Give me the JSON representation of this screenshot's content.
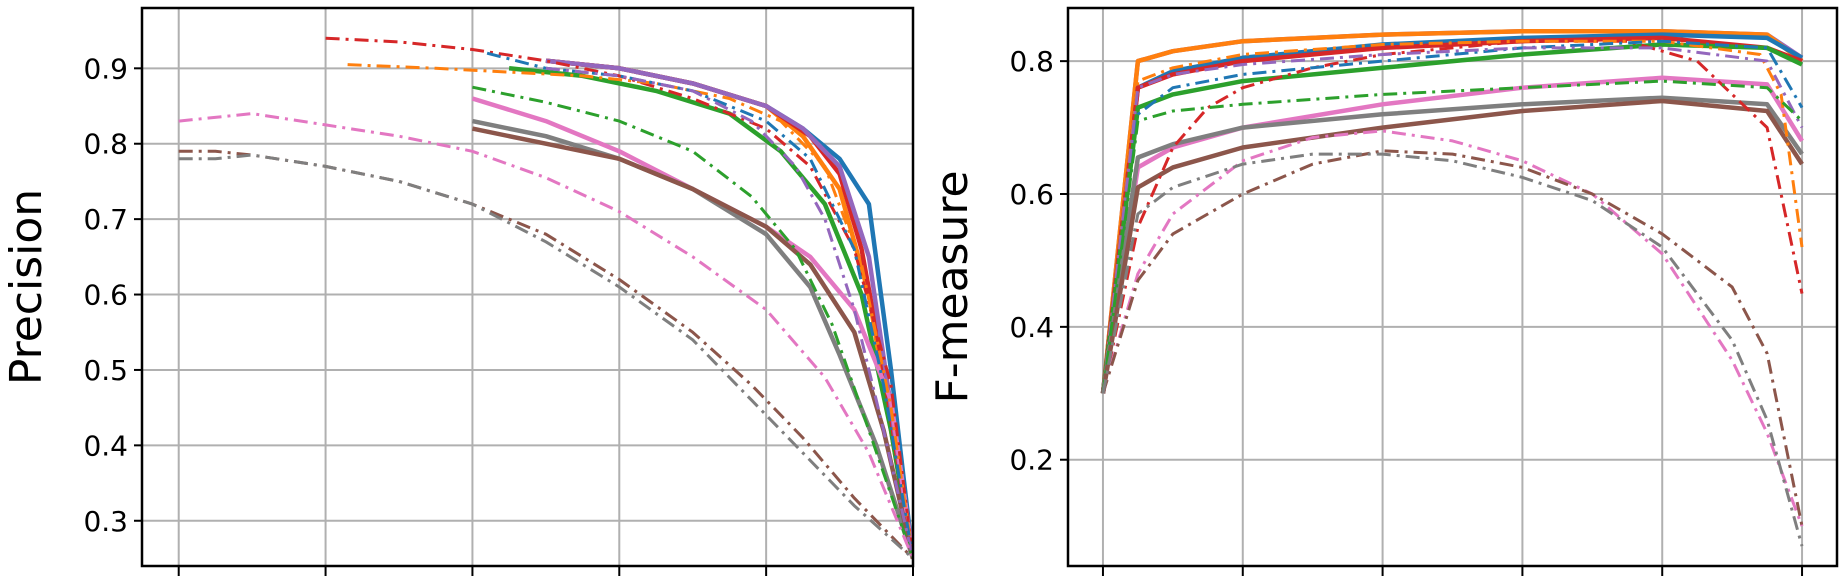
{
  "colors": {
    "blue": "#1f77b4",
    "orange": "#ff7f0e",
    "green": "#2ca02c",
    "red": "#d62728",
    "purple": "#9467bd",
    "brown": "#8c564b",
    "pink": "#e377c2",
    "gray": "#7f7f7f",
    "grid": "#b0b0b0"
  },
  "chart_data": [
    {
      "type": "line",
      "title": "",
      "xlabel": "",
      "ylabel": "Precision",
      "xlim": [
        -0.05,
        1.0
      ],
      "ylim": [
        0.24,
        0.98
      ],
      "xticks": [
        0,
        0.2,
        0.4,
        0.6,
        0.8,
        1.0
      ],
      "yticks": [
        0.3,
        0.4,
        0.5,
        0.6,
        0.7,
        0.8,
        0.9
      ],
      "ytick_labels": [
        "0.3",
        "0.4",
        "0.5",
        "0.6",
        "0.7",
        "0.8",
        "0.9"
      ],
      "grid": true,
      "series": [
        {
          "color": "blue",
          "style": "solid",
          "x": [
            0.5,
            0.6,
            0.7,
            0.8,
            0.85,
            0.9,
            0.94,
            0.97,
            1.0
          ],
          "y": [
            0.91,
            0.9,
            0.88,
            0.85,
            0.82,
            0.78,
            0.72,
            0.5,
            0.25
          ]
        },
        {
          "color": "orange",
          "style": "solid",
          "x": [
            0.5,
            0.6,
            0.7,
            0.8,
            0.85,
            0.9,
            0.94,
            0.97,
            1.0
          ],
          "y": [
            0.91,
            0.9,
            0.88,
            0.85,
            0.81,
            0.74,
            0.6,
            0.42,
            0.25
          ]
        },
        {
          "color": "green",
          "style": "solid",
          "x": [
            0.45,
            0.55,
            0.65,
            0.75,
            0.82,
            0.88,
            0.93,
            0.97,
            1.0
          ],
          "y": [
            0.9,
            0.89,
            0.87,
            0.84,
            0.79,
            0.72,
            0.6,
            0.42,
            0.25
          ]
        },
        {
          "color": "red",
          "style": "solid",
          "x": [
            0.5,
            0.6,
            0.7,
            0.8,
            0.86,
            0.9,
            0.93,
            0.96,
            1.0
          ],
          "y": [
            0.91,
            0.9,
            0.88,
            0.85,
            0.81,
            0.76,
            0.66,
            0.5,
            0.25
          ]
        },
        {
          "color": "purple",
          "style": "solid",
          "x": [
            0.5,
            0.6,
            0.7,
            0.8,
            0.85,
            0.9,
            0.94,
            0.97,
            1.0
          ],
          "y": [
            0.91,
            0.9,
            0.88,
            0.85,
            0.82,
            0.77,
            0.65,
            0.45,
            0.25
          ]
        },
        {
          "color": "pink",
          "style": "solid",
          "x": [
            0.4,
            0.5,
            0.6,
            0.7,
            0.8,
            0.86,
            0.92,
            0.97,
            1.0
          ],
          "y": [
            0.86,
            0.83,
            0.79,
            0.74,
            0.69,
            0.65,
            0.58,
            0.46,
            0.25
          ]
        },
        {
          "color": "gray",
          "style": "solid",
          "x": [
            0.4,
            0.5,
            0.6,
            0.7,
            0.8,
            0.86,
            0.9,
            0.95,
            1.0
          ],
          "y": [
            0.83,
            0.81,
            0.78,
            0.74,
            0.68,
            0.61,
            0.52,
            0.4,
            0.25
          ]
        },
        {
          "color": "brown",
          "style": "solid",
          "x": [
            0.4,
            0.5,
            0.6,
            0.7,
            0.8,
            0.86,
            0.92,
            0.96,
            1.0
          ],
          "y": [
            0.82,
            0.8,
            0.78,
            0.74,
            0.69,
            0.64,
            0.55,
            0.42,
            0.25
          ]
        },
        {
          "color": "red",
          "style": "dashdot",
          "x": [
            0.2,
            0.3,
            0.4,
            0.5,
            0.6,
            0.7,
            0.8,
            0.86,
            0.92,
            0.97,
            1.0
          ],
          "y": [
            0.94,
            0.935,
            0.925,
            0.91,
            0.89,
            0.86,
            0.82,
            0.77,
            0.66,
            0.48,
            0.25
          ]
        },
        {
          "color": "orange",
          "style": "dashdot",
          "x": [
            0.23,
            0.35,
            0.45,
            0.55,
            0.65,
            0.75,
            0.82,
            0.88,
            0.93,
            0.97,
            1.0
          ],
          "y": [
            0.905,
            0.9,
            0.895,
            0.89,
            0.88,
            0.86,
            0.83,
            0.77,
            0.64,
            0.45,
            0.25
          ]
        },
        {
          "color": "blue",
          "style": "dashdot",
          "x": [
            0.42,
            0.5,
            0.6,
            0.7,
            0.8,
            0.86,
            0.92,
            0.96,
            1.0
          ],
          "y": [
            0.92,
            0.9,
            0.89,
            0.87,
            0.83,
            0.78,
            0.66,
            0.48,
            0.25
          ]
        },
        {
          "color": "purple",
          "style": "dashdot",
          "x": [
            0.5,
            0.6,
            0.7,
            0.78,
            0.84,
            0.88,
            0.92,
            0.96,
            1.0
          ],
          "y": [
            0.9,
            0.89,
            0.87,
            0.83,
            0.77,
            0.7,
            0.58,
            0.42,
            0.25
          ]
        },
        {
          "color": "green",
          "style": "dashdot",
          "x": [
            0.4,
            0.5,
            0.6,
            0.7,
            0.78,
            0.84,
            0.89,
            0.94,
            1.0
          ],
          "y": [
            0.875,
            0.855,
            0.83,
            0.79,
            0.73,
            0.66,
            0.56,
            0.42,
            0.25
          ]
        },
        {
          "color": "pink",
          "style": "dashdot",
          "x": [
            0.0,
            0.1,
            0.2,
            0.3,
            0.4,
            0.5,
            0.6,
            0.7,
            0.8,
            0.88,
            0.94,
            1.0
          ],
          "y": [
            0.83,
            0.84,
            0.825,
            0.81,
            0.79,
            0.755,
            0.71,
            0.65,
            0.58,
            0.49,
            0.39,
            0.25
          ]
        },
        {
          "color": "brown",
          "style": "dashdot",
          "x": [
            0.0,
            0.05,
            0.1,
            0.2,
            0.3,
            0.4,
            0.5,
            0.6,
            0.7,
            0.78,
            0.85,
            0.92,
            1.0
          ],
          "y": [
            0.79,
            0.79,
            0.785,
            0.77,
            0.75,
            0.72,
            0.68,
            0.62,
            0.55,
            0.48,
            0.41,
            0.33,
            0.25
          ]
        },
        {
          "color": "gray",
          "style": "dashdot",
          "x": [
            0.0,
            0.05,
            0.1,
            0.2,
            0.3,
            0.4,
            0.5,
            0.6,
            0.7,
            0.78,
            0.85,
            0.92,
            1.0
          ],
          "y": [
            0.78,
            0.78,
            0.785,
            0.77,
            0.75,
            0.72,
            0.67,
            0.61,
            0.54,
            0.46,
            0.39,
            0.32,
            0.25
          ]
        }
      ]
    },
    {
      "type": "line",
      "title": "",
      "xlabel": "",
      "ylabel": "F-measure",
      "xlim": [
        -0.05,
        1.05
      ],
      "ylim": [
        0.04,
        0.88
      ],
      "xticks": [
        0,
        0.2,
        0.4,
        0.6,
        0.8,
        1.0
      ],
      "yticks": [
        0.2,
        0.4,
        0.6,
        0.8
      ],
      "ytick_labels": [
        "0.2",
        "0.4",
        "0.6",
        "0.8"
      ],
      "grid": true,
      "series": [
        {
          "color": "purple",
          "style": "solid",
          "x": [
            0.0,
            0.05,
            0.1,
            0.2,
            0.4,
            0.6,
            0.8,
            0.95,
            1.0
          ],
          "y": [
            0.3,
            0.8,
            0.815,
            0.83,
            0.84,
            0.845,
            0.845,
            0.84,
            0.805
          ]
        },
        {
          "color": "orange",
          "style": "solid",
          "x": [
            0.0,
            0.05,
            0.1,
            0.2,
            0.4,
            0.6,
            0.8,
            0.95,
            1.0
          ],
          "y": [
            0.3,
            0.8,
            0.815,
            0.83,
            0.84,
            0.845,
            0.845,
            0.84,
            0.8
          ]
        },
        {
          "color": "blue",
          "style": "solid",
          "x": [
            0.0,
            0.05,
            0.1,
            0.2,
            0.4,
            0.6,
            0.8,
            0.95,
            1.0
          ],
          "y": [
            0.3,
            0.76,
            0.785,
            0.805,
            0.825,
            0.835,
            0.84,
            0.835,
            0.805
          ]
        },
        {
          "color": "red",
          "style": "solid",
          "x": [
            0.0,
            0.05,
            0.1,
            0.2,
            0.4,
            0.6,
            0.8,
            0.95,
            1.0
          ],
          "y": [
            0.3,
            0.76,
            0.78,
            0.8,
            0.82,
            0.83,
            0.835,
            0.82,
            0.8
          ]
        },
        {
          "color": "green",
          "style": "solid",
          "x": [
            0.0,
            0.05,
            0.1,
            0.2,
            0.4,
            0.6,
            0.8,
            0.95,
            1.0
          ],
          "y": [
            0.3,
            0.73,
            0.75,
            0.77,
            0.79,
            0.81,
            0.825,
            0.82,
            0.795
          ]
        },
        {
          "color": "pink",
          "style": "solid",
          "x": [
            0.0,
            0.05,
            0.1,
            0.2,
            0.4,
            0.6,
            0.8,
            0.95,
            1.0
          ],
          "y": [
            0.3,
            0.64,
            0.67,
            0.7,
            0.735,
            0.76,
            0.775,
            0.765,
            0.68
          ]
        },
        {
          "color": "gray",
          "style": "solid",
          "x": [
            0.0,
            0.05,
            0.1,
            0.2,
            0.4,
            0.6,
            0.8,
            0.95,
            1.0
          ],
          "y": [
            0.3,
            0.655,
            0.675,
            0.7,
            0.72,
            0.735,
            0.745,
            0.735,
            0.66
          ]
        },
        {
          "color": "brown",
          "style": "solid",
          "x": [
            0.0,
            0.05,
            0.1,
            0.2,
            0.4,
            0.6,
            0.8,
            0.95,
            1.0
          ],
          "y": [
            0.3,
            0.61,
            0.64,
            0.67,
            0.7,
            0.725,
            0.74,
            0.725,
            0.645
          ]
        },
        {
          "color": "red",
          "style": "dashdot",
          "x": [
            0.0,
            0.05,
            0.1,
            0.15,
            0.2,
            0.3,
            0.4,
            0.6,
            0.75,
            0.85,
            0.95,
            1.0
          ],
          "y": [
            0.3,
            0.55,
            0.67,
            0.73,
            0.76,
            0.79,
            0.81,
            0.83,
            0.83,
            0.8,
            0.7,
            0.45
          ]
        },
        {
          "color": "orange",
          "style": "dashdot",
          "x": [
            0.0,
            0.05,
            0.1,
            0.2,
            0.4,
            0.6,
            0.8,
            0.94,
            0.97,
            1.0
          ],
          "y": [
            0.3,
            0.77,
            0.79,
            0.81,
            0.825,
            0.83,
            0.83,
            0.81,
            0.75,
            0.52
          ]
        },
        {
          "color": "blue",
          "style": "dashdot",
          "x": [
            0.0,
            0.05,
            0.1,
            0.2,
            0.4,
            0.6,
            0.8,
            0.95,
            1.0
          ],
          "y": [
            0.3,
            0.72,
            0.76,
            0.78,
            0.8,
            0.82,
            0.83,
            0.82,
            0.73
          ]
        },
        {
          "color": "purple",
          "style": "dashdot",
          "x": [
            0.0,
            0.05,
            0.1,
            0.2,
            0.4,
            0.6,
            0.8,
            0.95,
            1.0
          ],
          "y": [
            0.3,
            0.76,
            0.78,
            0.795,
            0.81,
            0.82,
            0.82,
            0.8,
            0.7
          ]
        },
        {
          "color": "green",
          "style": "dashdot",
          "x": [
            0.0,
            0.05,
            0.1,
            0.2,
            0.4,
            0.6,
            0.8,
            0.95,
            1.0
          ],
          "y": [
            0.3,
            0.71,
            0.725,
            0.735,
            0.75,
            0.76,
            0.77,
            0.76,
            0.71
          ]
        },
        {
          "color": "pink",
          "style": "dashdot",
          "x": [
            0.0,
            0.05,
            0.1,
            0.2,
            0.3,
            0.4,
            0.5,
            0.6,
            0.7,
            0.8,
            0.9,
            0.95,
            1.0
          ],
          "y": [
            0.3,
            0.48,
            0.57,
            0.65,
            0.685,
            0.695,
            0.68,
            0.65,
            0.6,
            0.51,
            0.35,
            0.24,
            0.1
          ]
        },
        {
          "color": "brown",
          "style": "dashdot",
          "x": [
            0.0,
            0.05,
            0.1,
            0.2,
            0.3,
            0.4,
            0.5,
            0.6,
            0.7,
            0.8,
            0.9,
            0.95,
            1.0
          ],
          "y": [
            0.3,
            0.47,
            0.54,
            0.6,
            0.645,
            0.665,
            0.66,
            0.64,
            0.6,
            0.54,
            0.46,
            0.36,
            0.1
          ]
        },
        {
          "color": "gray",
          "style": "dashdot",
          "x": [
            0.0,
            0.05,
            0.1,
            0.2,
            0.3,
            0.4,
            0.5,
            0.6,
            0.7,
            0.8,
            0.9,
            0.95,
            1.0
          ],
          "y": [
            0.3,
            0.57,
            0.61,
            0.645,
            0.66,
            0.66,
            0.65,
            0.625,
            0.59,
            0.52,
            0.38,
            0.26,
            0.07
          ]
        }
      ]
    }
  ]
}
